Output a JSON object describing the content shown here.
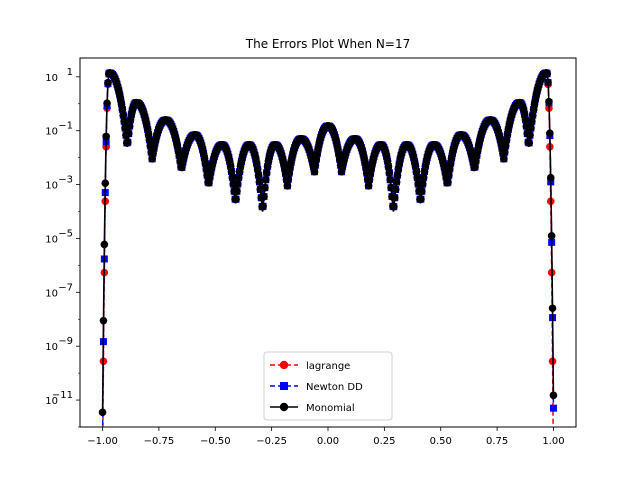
{
  "chart_data": {
    "type": "line",
    "title": "The Errors Plot When N=17",
    "xlabel": "",
    "ylabel": "",
    "y_scale": "log",
    "xlim": [
      -1.1,
      1.1
    ],
    "ylim": [
      1e-12,
      50
    ],
    "x_ticks": [
      -1.0,
      -0.75,
      -0.5,
      -0.25,
      0.0,
      0.25,
      0.5,
      0.75,
      1.0
    ],
    "x_tick_labels": [
      "−1.00",
      "−0.75",
      "−0.50",
      "−0.25",
      "0.00",
      "0.25",
      "0.50",
      "0.75",
      "1.00"
    ],
    "y_ticks": [
      1e-11,
      1e-09,
      1e-07,
      1e-05,
      0.001,
      0.1,
      10
    ],
    "y_tick_labels": [
      {
        "base": "10",
        "exp": "−11"
      },
      {
        "base": "10",
        "exp": "−9"
      },
      {
        "base": "10",
        "exp": "−7"
      },
      {
        "base": "10",
        "exp": "−5"
      },
      {
        "base": "10",
        "exp": "−3"
      },
      {
        "base": "10",
        "exp": "−1"
      },
      {
        "base": "10",
        "exp": "1"
      }
    ],
    "grid": false,
    "legend_position": "bottom-center",
    "nodes": 17,
    "series": [
      {
        "name": "lagrange",
        "color": "#ff0000",
        "linestyle": "dashed",
        "marker": "circle",
        "endpoint_values": {
          "left": 3e-14,
          "right": 3e-14
        }
      },
      {
        "name": "Newton DD",
        "color": "#0000ff",
        "linestyle": "dashed",
        "marker": "square",
        "endpoint_values": {
          "left": 3e-13,
          "right": 5e-12
        }
      },
      {
        "name": "Monomial",
        "color": "#000000",
        "linestyle": "solid",
        "marker": "circle",
        "endpoint_values": {
          "left": 3.5e-12,
          "right": 1.5e-11
        }
      }
    ],
    "note_peaks": [
      {
        "x": -0.97,
        "y": 14
      },
      {
        "x": -0.85,
        "y": 1.1
      },
      {
        "x": -0.72,
        "y": 0.25
      },
      {
        "x": -0.59,
        "y": 0.07
      },
      {
        "x": -0.47,
        "y": 0.03
      },
      {
        "x": -0.35,
        "y": 0.03
      },
      {
        "x": -0.235,
        "y": 0.03
      },
      {
        "x": -0.12,
        "y": 0.05
      },
      {
        "x": 0.0,
        "y": 0.15
      },
      {
        "x": 0.12,
        "y": 0.05
      },
      {
        "x": 0.235,
        "y": 0.03
      },
      {
        "x": 0.35,
        "y": 0.03
      },
      {
        "x": 0.47,
        "y": 0.03
      },
      {
        "x": 0.59,
        "y": 0.07
      },
      {
        "x": 0.72,
        "y": 0.25
      },
      {
        "x": 0.85,
        "y": 1.1
      },
      {
        "x": 0.97,
        "y": 14
      }
    ],
    "note_troughs": [
      {
        "x": -0.89,
        "y": 0.025
      },
      {
        "x": -0.78,
        "y": 0.009
      },
      {
        "x": -0.65,
        "y": 0.0035
      },
      {
        "x": -0.53,
        "y": 0.0009
      },
      {
        "x": -0.41,
        "y": 0.0002
      },
      {
        "x": -0.29,
        "y": 0.0001
      },
      {
        "x": -0.18,
        "y": 0.0009
      },
      {
        "x": -0.06,
        "y": 0.003
      },
      {
        "x": 0.06,
        "y": 0.003
      },
      {
        "x": 0.18,
        "y": 0.0009
      },
      {
        "x": 0.29,
        "y": 0.0001
      },
      {
        "x": 0.41,
        "y": 0.0002
      },
      {
        "x": 0.53,
        "y": 0.0009
      },
      {
        "x": 0.65,
        "y": 0.0035
      },
      {
        "x": 0.78,
        "y": 0.009
      },
      {
        "x": 0.89,
        "y": 0.025
      }
    ]
  }
}
